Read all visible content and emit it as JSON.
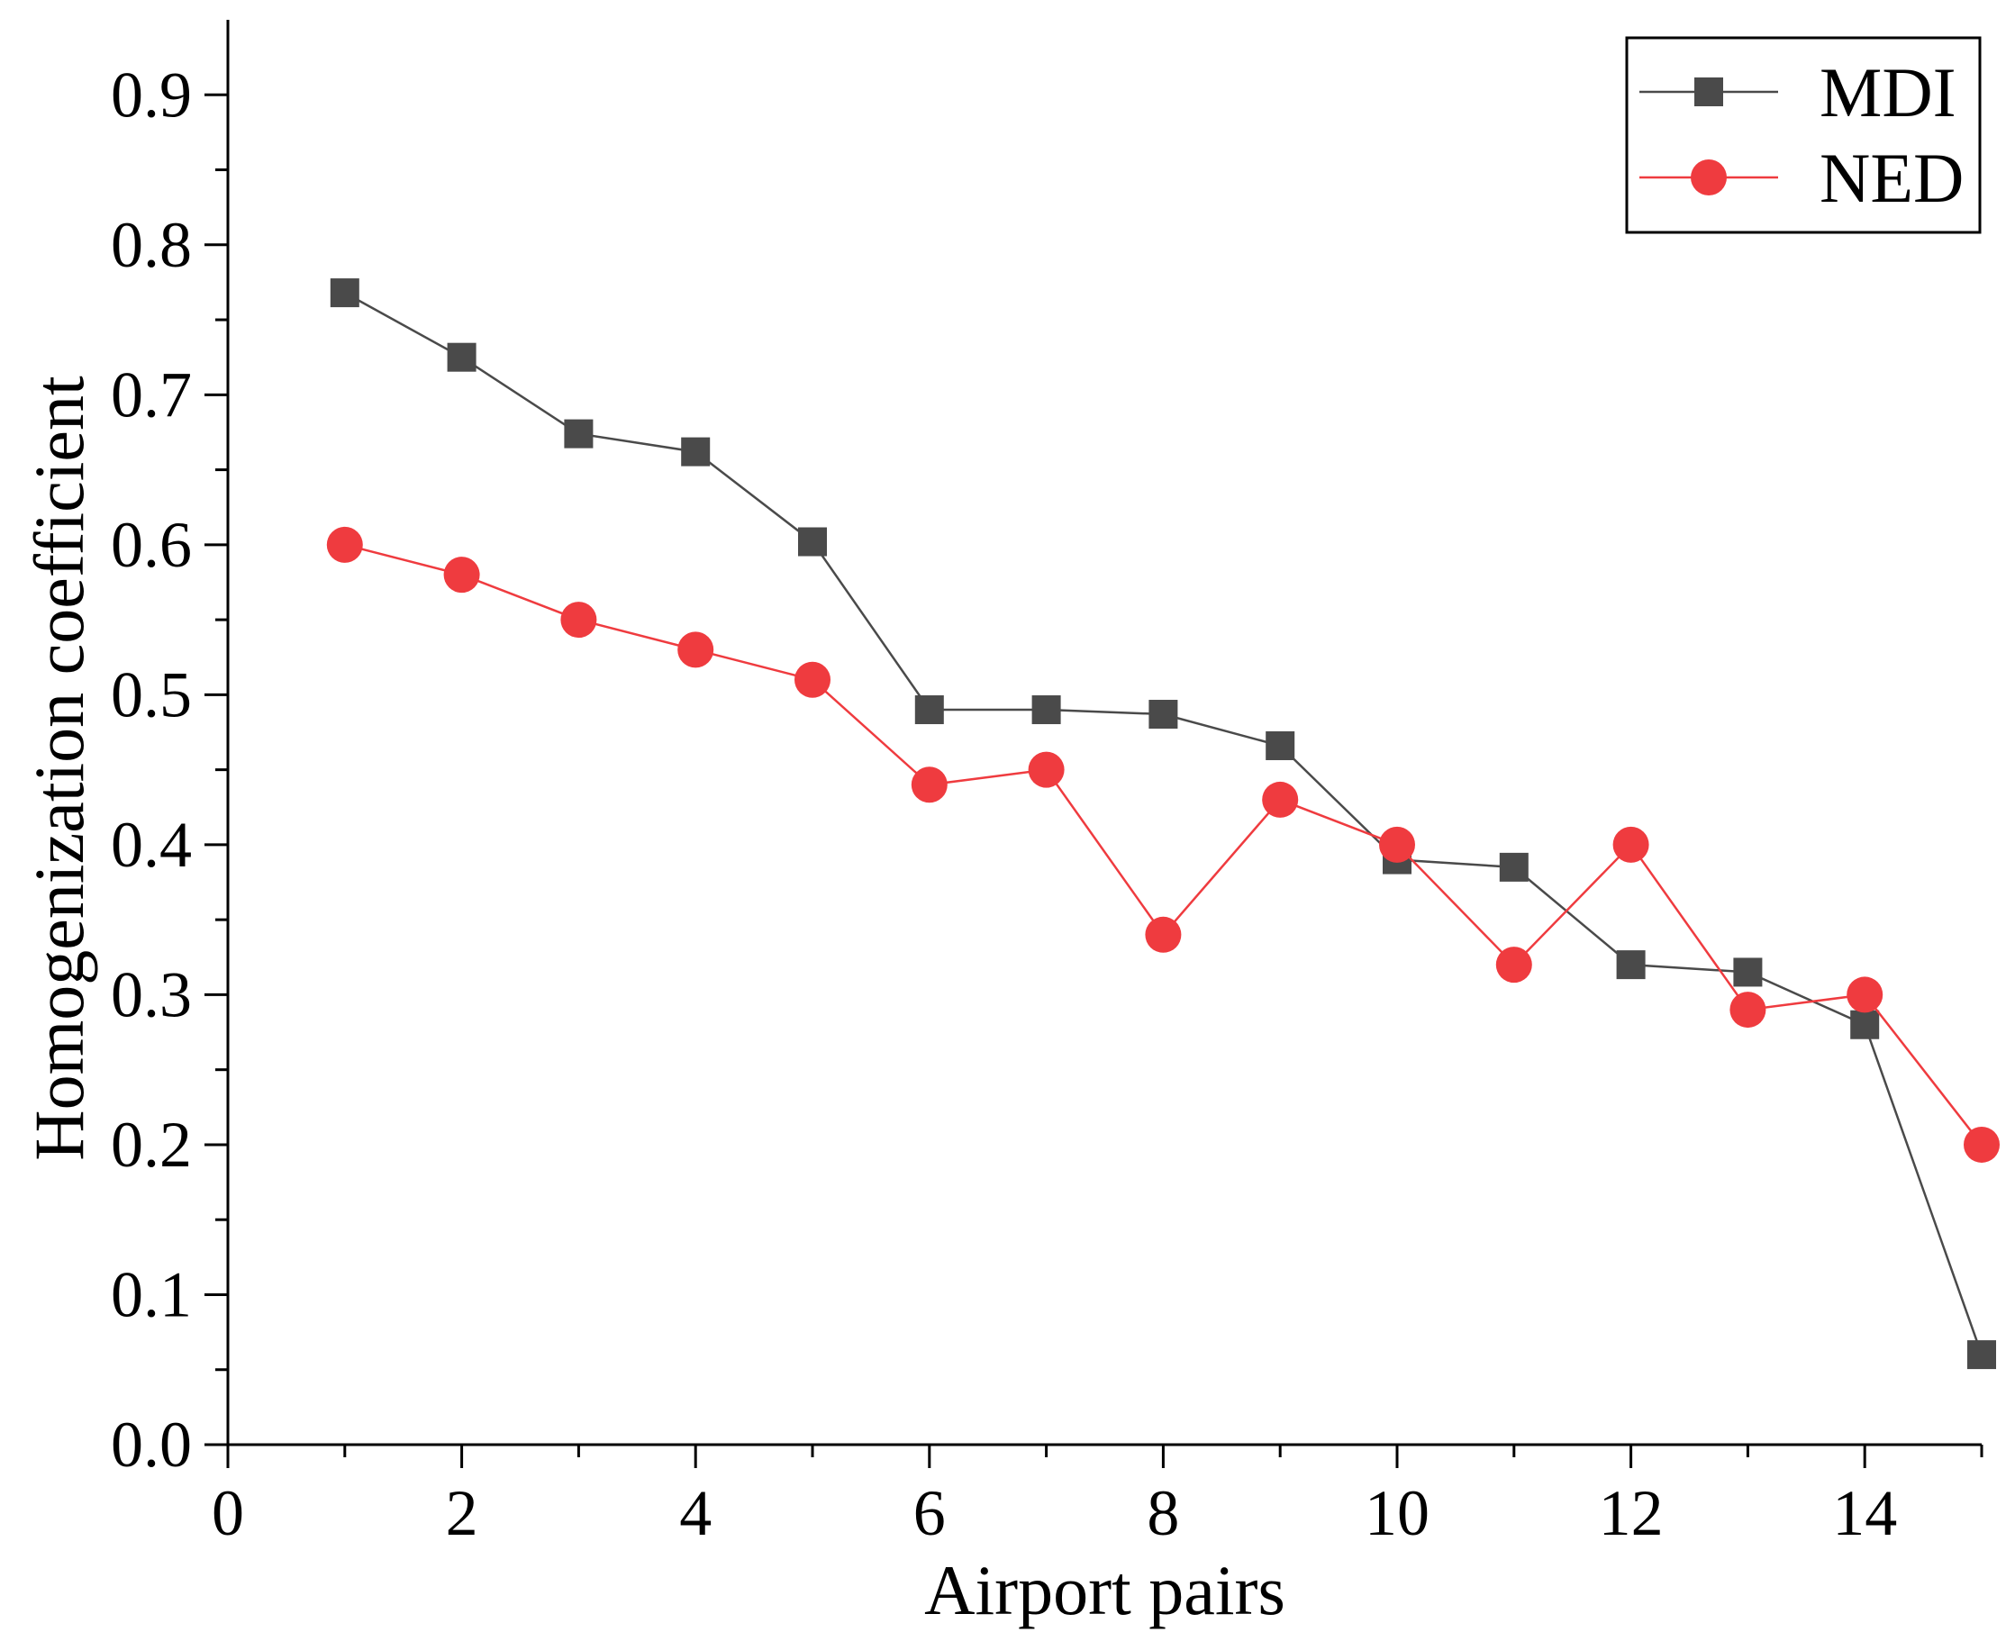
{
  "chart_data": {
    "type": "line",
    "title": "",
    "xlabel": "Airport pairs",
    "ylabel": "Homogenization coefficient",
    "xlim": [
      0,
      15
    ],
    "ylim": [
      0,
      0.95
    ],
    "x_ticks": [
      0,
      2,
      4,
      6,
      8,
      10,
      12,
      14
    ],
    "x_tick_labels": [
      "0",
      "2",
      "4",
      "6",
      "8",
      "10",
      "12",
      "14"
    ],
    "x_minor_ticks": [
      1,
      3,
      5,
      7,
      9,
      11,
      13,
      15
    ],
    "y_ticks": [
      0.0,
      0.1,
      0.2,
      0.3,
      0.4,
      0.5,
      0.6,
      0.7,
      0.8,
      0.9
    ],
    "y_tick_labels": [
      "0.0",
      "0.1",
      "0.2",
      "0.3",
      "0.4",
      "0.5",
      "0.6",
      "0.7",
      "0.8",
      "0.9"
    ],
    "y_minor_ticks": [
      0.05,
      0.15,
      0.25,
      0.35,
      0.45,
      0.55,
      0.65,
      0.75,
      0.85
    ],
    "grid": false,
    "legend_position": "top-right",
    "x": [
      1,
      2,
      3,
      4,
      5,
      6,
      7,
      8,
      9,
      10,
      11,
      12,
      13,
      14,
      15
    ],
    "series": [
      {
        "name": "MDI",
        "marker": "square",
        "color": "#4a4a4a",
        "values": [
          0.768,
          0.725,
          0.674,
          0.662,
          0.602,
          0.49,
          0.49,
          0.487,
          0.466,
          0.39,
          0.385,
          0.32,
          0.315,
          0.28,
          0.06
        ]
      },
      {
        "name": "NED",
        "marker": "circle",
        "color": "#ef3b3f",
        "values": [
          0.6,
          0.58,
          0.55,
          0.53,
          0.51,
          0.44,
          0.45,
          0.34,
          0.43,
          0.4,
          0.32,
          0.4,
          0.29,
          0.3,
          0.2
        ]
      }
    ]
  }
}
